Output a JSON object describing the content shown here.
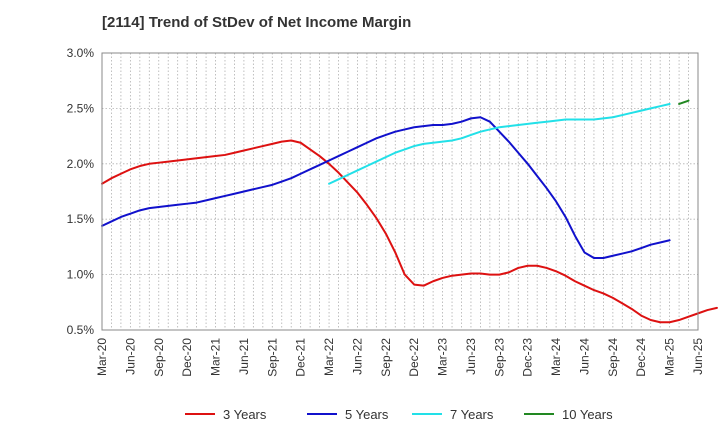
{
  "chart_data": {
    "type": "line",
    "title": "[2114]  Trend of StDev of Net Income Margin",
    "x_tick_labels": [
      "Mar-20",
      "Jun-20",
      "Sep-20",
      "Dec-20",
      "Mar-21",
      "Jun-21",
      "Sep-21",
      "Dec-21",
      "Mar-22",
      "Jun-22",
      "Sep-22",
      "Dec-22",
      "Mar-23",
      "Jun-23",
      "Sep-23",
      "Dec-23",
      "Mar-24",
      "Jun-24",
      "Sep-24",
      "Dec-24",
      "Mar-25",
      "Jun-25"
    ],
    "y_tick_labels": [
      "0.5%",
      "1.0%",
      "1.5%",
      "2.0%",
      "2.5%",
      "3.0%"
    ],
    "ylim": [
      0.5,
      3.0
    ],
    "y_ticks": [
      0.5,
      1.0,
      1.5,
      2.0,
      2.5,
      3.0
    ],
    "grid": true,
    "legend_position": "bottom",
    "series": [
      {
        "name": "3 Years",
        "color": "#dd1111",
        "start_index": 0,
        "values": [
          1.82,
          1.87,
          1.91,
          1.95,
          1.98,
          2.0,
          2.01,
          2.02,
          2.03,
          2.04,
          2.05,
          2.06,
          2.07,
          2.08,
          2.1,
          2.12,
          2.14,
          2.16,
          2.18,
          2.2,
          2.21,
          2.19,
          2.13,
          2.07,
          2.0,
          1.92,
          1.83,
          1.74,
          1.63,
          1.51,
          1.37,
          1.2,
          1.0,
          0.91,
          0.9,
          0.94,
          0.97,
          0.99,
          1.0,
          1.01,
          1.01,
          1.0,
          1.0,
          1.02,
          1.06,
          1.08,
          1.08,
          1.06,
          1.03,
          0.99,
          0.94,
          0.9,
          0.86,
          0.83,
          0.79,
          0.74,
          0.69,
          0.63,
          0.59,
          0.57,
          0.57,
          0.59,
          0.62,
          0.65,
          0.68,
          0.7
        ]
      },
      {
        "name": "5 Years",
        "color": "#1111cc",
        "start_index": 0,
        "values": [
          1.44,
          1.48,
          1.52,
          1.55,
          1.58,
          1.6,
          1.61,
          1.62,
          1.63,
          1.64,
          1.65,
          1.67,
          1.69,
          1.71,
          1.73,
          1.75,
          1.77,
          1.79,
          1.81,
          1.84,
          1.87,
          1.91,
          1.95,
          1.99,
          2.03,
          2.07,
          2.11,
          2.15,
          2.19,
          2.23,
          2.26,
          2.29,
          2.31,
          2.33,
          2.34,
          2.35,
          2.35,
          2.36,
          2.38,
          2.41,
          2.42,
          2.38,
          2.29,
          2.2,
          2.1,
          2.0,
          1.89,
          1.78,
          1.66,
          1.52,
          1.35,
          1.2,
          1.15,
          1.15,
          1.17,
          1.19,
          1.21,
          1.24,
          1.27,
          1.29,
          1.31
        ]
      },
      {
        "name": "7 Years",
        "color": "#22e0e8",
        "start_index": 24,
        "values": [
          1.82,
          1.86,
          1.9,
          1.94,
          1.98,
          2.02,
          2.06,
          2.1,
          2.13,
          2.16,
          2.18,
          2.19,
          2.2,
          2.21,
          2.23,
          2.26,
          2.29,
          2.31,
          2.33,
          2.34,
          2.35,
          2.36,
          2.37,
          2.38,
          2.39,
          2.4,
          2.4,
          2.4,
          2.4,
          2.41,
          2.42,
          2.44,
          2.46,
          2.48,
          2.5,
          2.52,
          2.54
        ]
      },
      {
        "name": "10 Years",
        "color": "#228822",
        "start_index": 61,
        "values": [
          2.54,
          2.57
        ]
      }
    ]
  }
}
